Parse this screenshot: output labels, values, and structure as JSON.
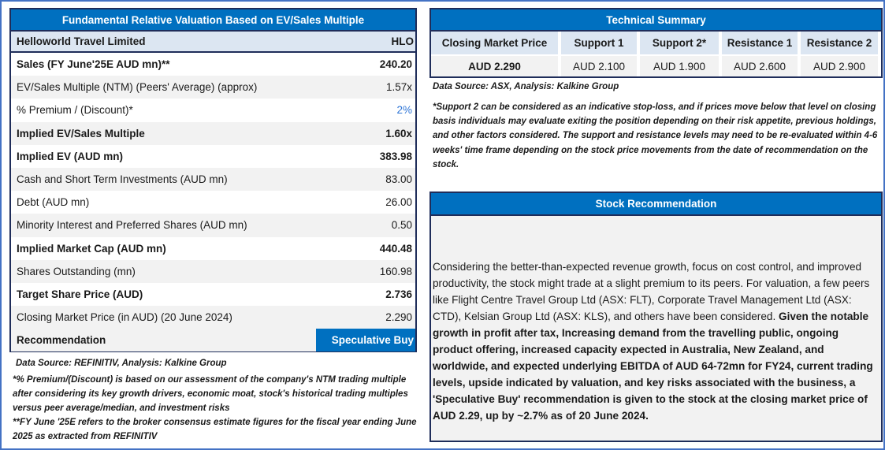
{
  "valuation": {
    "title": "Fundamental Relative Valuation Based on EV/Sales Multiple",
    "company": "Helloworld Travel Limited",
    "ticker": "HLO",
    "rows": [
      {
        "label": "Sales (FY June'25E AUD mn)**",
        "value": "240.20",
        "bold": true
      },
      {
        "label": "EV/Sales Multiple (NTM)  (Peers' Average) (approx)",
        "value": "1.57x",
        "bold": false
      },
      {
        "label": "% Premium / (Discount)*",
        "value": "2%",
        "bold": false,
        "highlight": true
      },
      {
        "label": "Implied EV/Sales Multiple",
        "value": "1.60x",
        "bold": true
      },
      {
        "label": "Implied EV (AUD mn)",
        "value": "383.98",
        "bold": true
      },
      {
        "label": "Cash and Short Term Investments (AUD mn)",
        "value": "83.00",
        "bold": false
      },
      {
        "label": "Debt (AUD mn)",
        "value": "26.00",
        "bold": false
      },
      {
        "label": "Minority Interest and Preferred Shares (AUD mn)",
        "value": "0.50",
        "bold": false
      },
      {
        "label": "Implied Market Cap (AUD mn)",
        "value": "440.48",
        "bold": true
      },
      {
        "label": "Shares Outstanding (mn)",
        "value": "160.98",
        "bold": false
      },
      {
        "label": "Target Share Price (AUD)",
        "value": "2.736",
        "bold": true
      },
      {
        "label": "Closing Market Price (in AUD) (20 June 2024)",
        "value": "2.290",
        "bold": false
      }
    ],
    "recommendation_label": "Recommendation",
    "recommendation_value": "Speculative Buy",
    "source": "Data Source: REFINITIV, Analysis: Kalkine Group",
    "note1": "*% Premium/(Discount) is based on our assessment of the company's NTM trading multiple after considering its key growth drivers, economic moat, stock's historical trading multiples versus peer average/median, and investment risks",
    "note2": "**FY June '25E refers to the broker consensus estimate figures for the fiscal year ending June 2025  as extracted from REFINITIV"
  },
  "technical": {
    "title": "Technical Summary",
    "columns": [
      {
        "header": "Closing Market Price",
        "value": "AUD 2.290"
      },
      {
        "header": "Support 1",
        "value": "AUD 2.100"
      },
      {
        "header": "Support 2*",
        "value": "AUD 1.900"
      },
      {
        "header": "Resistance 1",
        "value": "AUD 2.600"
      },
      {
        "header": "Resistance 2",
        "value": "AUD 2.900"
      }
    ],
    "source": "Data Source: ASX, Analysis: Kalkine Group",
    "note": "*Support 2 can be considered as an indicative stop-loss, and if prices move below that level on closing basis individuals may evaluate exiting the position depending on their risk appetite, previous holdings, and other factors considered. The support and resistance levels may need to be re-evaluated within 4-6 weeks' time frame depending on the stock price movements from the date of recommendation on the stock."
  },
  "recommendation": {
    "title": "Stock Recommendation",
    "text_plain": "Considering the better-than-expected revenue growth, focus on cost control, and improved productivity, the stock might trade at a slight premium to its peers. For valuation, a few peers like Flight Centre Travel Group Ltd (ASX: FLT), Corporate Travel Management Ltd (ASX: CTD),  Kelsian Group Ltd (ASX: KLS), and others have been considered.",
    "text_bold": " Given the notable growth in profit after tax, Increasing demand from the travelling public, ongoing product offering, increased capacity expected in Australia, New Zealand, and worldwide, and expected underlying EBITDA of AUD 64-72mn for FY24, current trading levels, upside indicated by valuation, and key risks associated with the business, a 'Speculative Buy' recommendation is given to the stock at the closing market price of AUD 2.29, up by ~2.7% as of 20 June 2024."
  },
  "colors": {
    "header_blue": "#0070c0",
    "border_navy": "#1f2d5a",
    "light_blue": "#dce6f2",
    "highlight_blue": "#2e75d6"
  }
}
